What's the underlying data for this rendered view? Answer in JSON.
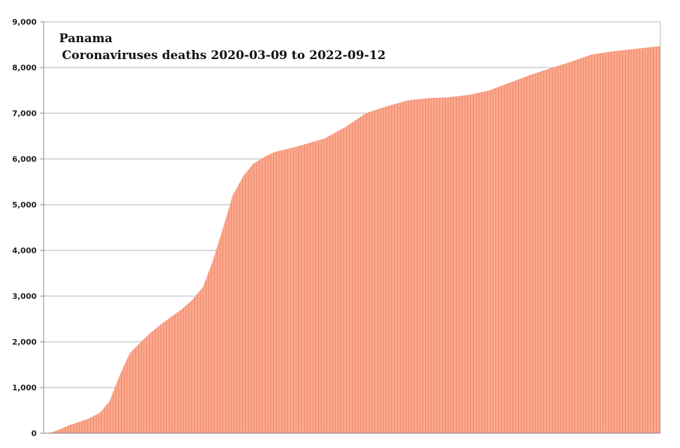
{
  "chart_data": {
    "type": "area",
    "title": "Panama",
    "subtitle": "Coronaviruses deaths 2020-03-09 to 2022-09-12",
    "xlabel": "",
    "ylabel": "",
    "x_start": "2020-03-09",
    "x_end": "2022-09-12",
    "ylim": [
      0,
      9000
    ],
    "yticks": [
      0,
      1000,
      2000,
      3000,
      4000,
      5000,
      6000,
      7000,
      8000,
      9000
    ],
    "ytick_labels": [
      "0",
      "1,000",
      "2,000",
      "3,000",
      "4,000",
      "5,000",
      "6,000",
      "7,000",
      "8,000",
      "9,000"
    ],
    "grid": true,
    "fill_color": "#f9a88e",
    "stripe_color": "#f48a6c",
    "series": [
      {
        "x": [
          "2020-03-09",
          "2020-03-20",
          "2020-04-01",
          "2020-04-15",
          "2020-05-01",
          "2020-05-15",
          "2020-06-01",
          "2020-06-15",
          "2020-07-01",
          "2020-07-15",
          "2020-08-01",
          "2020-08-15",
          "2020-09-01",
          "2020-09-15",
          "2020-10-01",
          "2020-10-15",
          "2020-11-01",
          "2020-11-15",
          "2020-12-01",
          "2020-12-15",
          "2021-01-01",
          "2021-01-15",
          "2021-02-01",
          "2021-02-15",
          "2021-03-01",
          "2021-03-15",
          "2021-04-01",
          "2021-05-01",
          "2021-06-01",
          "2021-07-01",
          "2021-08-01",
          "2021-09-01",
          "2021-10-01",
          "2021-11-01",
          "2021-12-01",
          "2022-01-01",
          "2022-01-15",
          "2022-02-01",
          "2022-02-15",
          "2022-03-01",
          "2022-04-01",
          "2022-05-01",
          "2022-06-01",
          "2022-07-01",
          "2022-08-01",
          "2022-09-12"
        ],
        "values": [
          0,
          15,
          80,
          170,
          250,
          320,
          450,
          700,
          1300,
          1750,
          2000,
          2200,
          2400,
          2550,
          2720,
          2900,
          3200,
          3750,
          4500,
          5200,
          5650,
          5900,
          6050,
          6150,
          6200,
          6250,
          6320,
          6450,
          6700,
          7000,
          7150,
          7280,
          7330,
          7350,
          7400,
          7500,
          7580,
          7670,
          7750,
          7830,
          7980,
          8120,
          8280,
          8350,
          8400,
          8470
        ]
      }
    ]
  }
}
